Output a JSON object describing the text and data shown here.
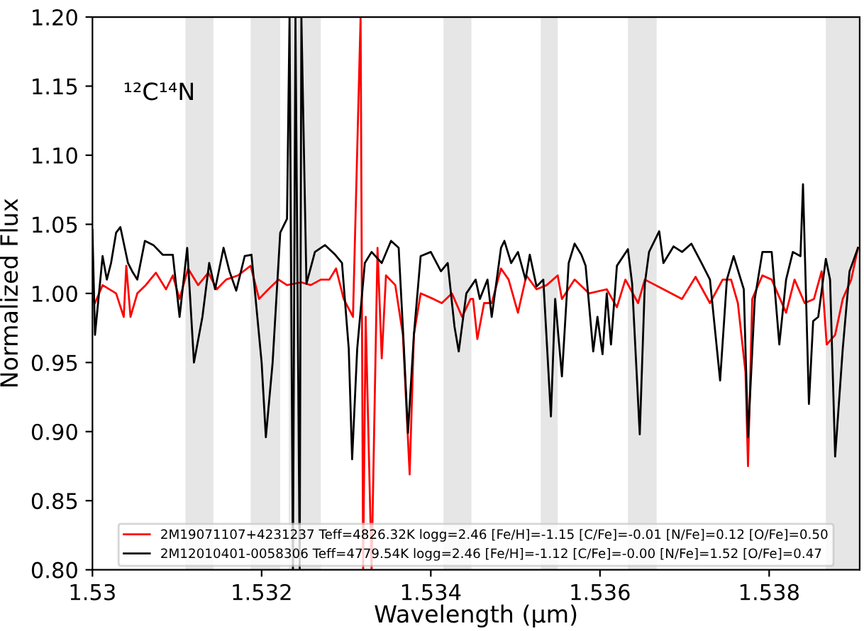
{
  "chart_data": {
    "type": "line",
    "xlabel": "Wavelength (μm)",
    "ylabel": "Normalized Flux",
    "annotations": [
      "¹²C¹⁴N"
    ],
    "xlim": [
      1.53,
      1.53907
    ],
    "ylim": [
      0.8,
      1.2
    ],
    "xticks": [
      1.53,
      1.532,
      1.534,
      1.536,
      1.538
    ],
    "yticks": [
      {
        "value": 0.8,
        "label": "0.80"
      },
      0.85,
      {
        "value": 0.9,
        "label": "0.90"
      },
      0.95,
      {
        "value": 1.0,
        "label": "1.00"
      },
      1.05,
      {
        "value": 1.1,
        "label": "1.10"
      },
      1.15,
      {
        "value": 1.2,
        "label": "1.20"
      }
    ],
    "grid": false,
    "legend": "bottom",
    "marker": "none",
    "line_style": "solid",
    "bands": [
      {
        "axis": "x",
        "from": 1.5311,
        "to": 1.53143,
        "color": "#e6e6e6"
      },
      {
        "axis": "x",
        "from": 1.53187,
        "to": 1.53222,
        "color": "#e6e6e6"
      },
      {
        "axis": "x",
        "from": 1.53232,
        "to": 1.5327,
        "color": "#e6e6e6"
      },
      {
        "axis": "x",
        "from": 1.53415,
        "to": 1.53448,
        "color": "#e6e6e6"
      },
      {
        "axis": "x",
        "from": 1.5353,
        "to": 1.5355,
        "color": "#e6e6e6"
      },
      {
        "axis": "x",
        "from": 1.53633,
        "to": 1.53667,
        "color": "#e6e6e6"
      },
      {
        "axis": "x",
        "from": 1.53867,
        "to": 1.53907,
        "color": "#e6e6e6"
      }
    ],
    "series": [
      {
        "name": "2M19071107+4231237 Teff=4826.32K logg=2.46 [Fe/H]=-1.15 [C/Fe]=-0.01 [N/Fe]=0.12 [O/Fe]=0.50",
        "color": "#ff0000",
        "x": [
          1.53,
          1.53003,
          1.53012,
          1.53028,
          1.53037,
          1.5304,
          1.53045,
          1.53053,
          1.53063,
          1.53075,
          1.53087,
          1.53095,
          1.53103,
          1.53113,
          1.53125,
          1.53137,
          1.53147,
          1.53158,
          1.53172,
          1.53187,
          1.53197,
          1.53208,
          1.5322,
          1.5323,
          1.53247,
          1.53258,
          1.5327,
          1.5328,
          1.53288,
          1.53297,
          1.53308,
          1.53317,
          1.5332,
          1.53323,
          1.5333,
          1.53337,
          1.53342,
          1.53347,
          1.53358,
          1.53367,
          1.53375,
          1.5338,
          1.53388,
          1.53403,
          1.53413,
          1.53425,
          1.53437,
          1.53447,
          1.5345,
          1.53455,
          1.53463,
          1.53472,
          1.53483,
          1.53492,
          1.53503,
          1.53513,
          1.53525,
          1.53537,
          1.5355,
          1.53555,
          1.5357,
          1.53587,
          1.53608,
          1.5362,
          1.5363,
          1.53645,
          1.53653,
          1.53675,
          1.53697,
          1.53713,
          1.5373,
          1.53745,
          1.53755,
          1.53763,
          1.53772,
          1.53775,
          1.5378,
          1.53792,
          1.53803,
          1.5382,
          1.5383,
          1.53842,
          1.53853,
          1.53862,
          1.53868,
          1.53878,
          1.53887,
          1.53897,
          1.53905
        ],
        "values": [
          0.996,
          0.993,
          1.006,
          1.0,
          0.983,
          1.02,
          0.983,
          1.0,
          1.006,
          1.015,
          1.003,
          1.013,
          0.996,
          1.018,
          1.006,
          1.015,
          1.003,
          1.01,
          1.013,
          1.02,
          0.996,
          1.003,
          1.01,
          1.006,
          1.008,
          1.006,
          1.01,
          1.01,
          1.018,
          0.996,
          0.983,
          1.2,
          0.8,
          0.983,
          0.8,
          1.033,
          0.953,
          1.013,
          1.006,
          0.97,
          0.869,
          0.97,
          1.0,
          0.996,
          0.993,
          1.0,
          0.983,
          0.996,
          0.996,
          0.967,
          0.993,
          0.993,
          1.018,
          1.01,
          0.986,
          1.013,
          1.003,
          1.006,
          1.013,
          0.996,
          1.01,
          1.0,
          1.003,
          0.99,
          1.01,
          0.993,
          1.01,
          1.003,
          0.996,
          1.012,
          0.993,
          1.01,
          1.01,
          0.993,
          0.943,
          0.875,
          0.996,
          1.013,
          1.01,
          0.986,
          1.01,
          0.993,
          0.996,
          1.016,
          0.963,
          0.97,
          0.996,
          1.01,
          1.033
        ]
      },
      {
        "name": "2M12010401-0058306 Teff=4779.54K logg=2.46 [Fe/H]=-1.12 [C/Fe]=-0.00 [N/Fe]=1.52 [O/Fe]=0.47",
        "color": "#000000",
        "x": [
          1.53,
          1.53003,
          1.53012,
          1.53017,
          1.53022,
          1.53028,
          1.53033,
          1.53042,
          1.53047,
          1.53053,
          1.53062,
          1.53072,
          1.53083,
          1.53095,
          1.53103,
          1.53112,
          1.5312,
          1.5313,
          1.53138,
          1.53145,
          1.53155,
          1.53162,
          1.5317,
          1.5318,
          1.53188,
          1.532,
          1.53205,
          1.53213,
          1.53222,
          1.5323,
          1.53233,
          1.53237,
          1.5324,
          1.53245,
          1.53247,
          1.53253,
          1.53263,
          1.53275,
          1.53287,
          1.53295,
          1.53303,
          1.53307,
          1.53313,
          1.53322,
          1.5333,
          1.53342,
          1.53353,
          1.53362,
          1.53368,
          1.53373,
          1.5338,
          1.53388,
          1.534,
          1.53412,
          1.5342,
          1.53428,
          1.53433,
          1.53442,
          1.53453,
          1.53458,
          1.53467,
          1.53472,
          1.53483,
          1.53487,
          1.53495,
          1.53503,
          1.53512,
          1.53517,
          1.53525,
          1.53533,
          1.53542,
          1.53547,
          1.53555,
          1.53563,
          1.5357,
          1.53578,
          1.53583,
          1.53592,
          1.53597,
          1.53603,
          1.53608,
          1.53613,
          1.5362,
          1.53633,
          1.53638,
          1.53647,
          1.53653,
          1.53658,
          1.5367,
          1.53675,
          1.53687,
          1.53697,
          1.53708,
          1.5372,
          1.5373,
          1.53742,
          1.5375,
          1.53758,
          1.5377,
          1.53775,
          1.53783,
          1.53792,
          1.53803,
          1.53812,
          1.5382,
          1.53828,
          1.53837,
          1.5384,
          1.53847,
          1.53852,
          1.53858,
          1.53867,
          1.53872,
          1.53878,
          1.53887,
          1.53895,
          1.53905
        ],
        "values": [
          1.046,
          0.97,
          1.027,
          1.01,
          1.022,
          1.044,
          1.048,
          1.022,
          1.016,
          1.01,
          1.038,
          1.035,
          1.028,
          1.028,
          0.983,
          1.033,
          0.95,
          0.983,
          1.022,
          1.003,
          1.033,
          1.016,
          1.002,
          1.027,
          1.028,
          0.95,
          0.896,
          0.95,
          1.044,
          1.054,
          1.2,
          0.8,
          1.2,
          0.8,
          1.2,
          1.007,
          1.03,
          1.035,
          1.028,
          1.022,
          0.96,
          0.88,
          0.96,
          1.022,
          1.03,
          1.022,
          1.038,
          1.033,
          0.963,
          0.899,
          0.97,
          1.027,
          1.03,
          1.016,
          1.022,
          0.976,
          0.958,
          1.0,
          1.01,
          0.996,
          1.01,
          0.983,
          1.033,
          1.038,
          1.022,
          1.03,
          1.01,
          1.028,
          1.005,
          1.01,
          0.911,
          0.996,
          0.94,
          1.022,
          1.036,
          1.028,
          1.02,
          0.958,
          0.983,
          0.956,
          1.0,
          0.963,
          1.02,
          1.032,
          1.007,
          0.898,
          1.007,
          1.03,
          1.045,
          1.022,
          1.034,
          1.03,
          1.036,
          1.022,
          1.01,
          0.937,
          1.01,
          1.027,
          1.003,
          0.896,
          0.996,
          1.03,
          1.03,
          0.963,
          1.01,
          1.03,
          1.027,
          1.079,
          0.92,
          0.98,
          0.983,
          1.025,
          1.01,
          0.882,
          0.96,
          1.016,
          1.033
        ]
      }
    ]
  }
}
